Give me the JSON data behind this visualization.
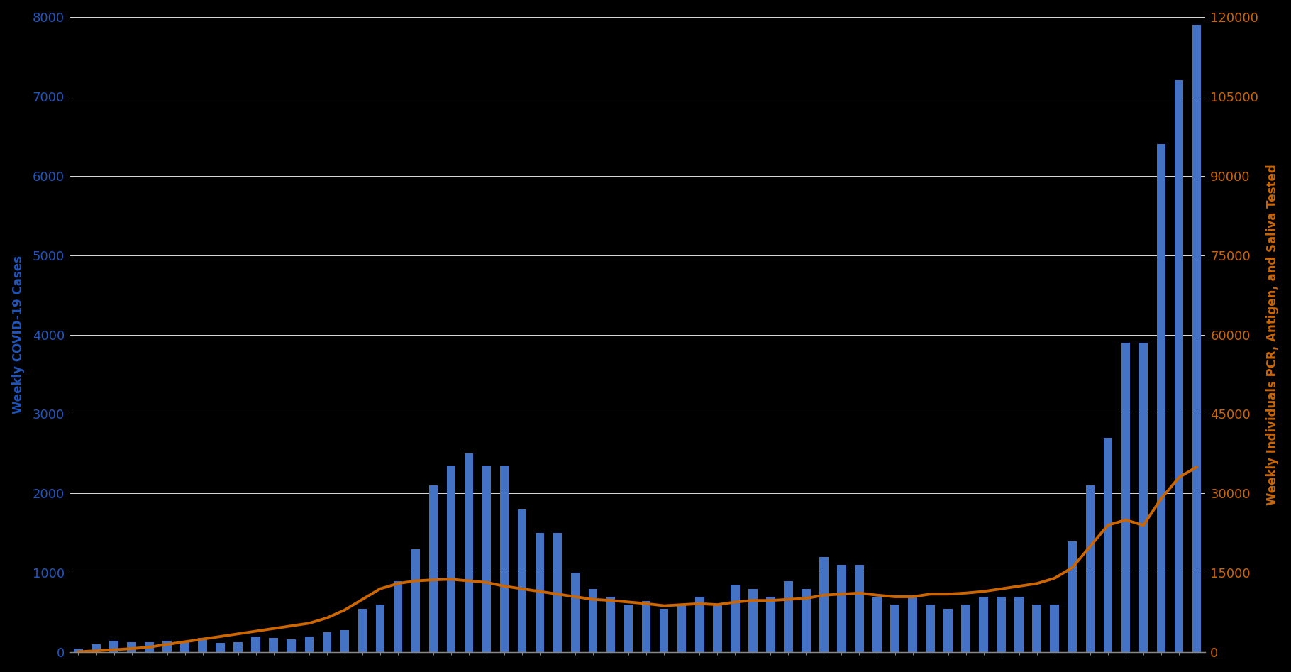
{
  "background_color": "#000000",
  "bar_color": "#4472c4",
  "line_color": "#cc6600",
  "left_ylabel": "Weekly COVID-19 Cases",
  "right_ylabel": "Weekly Individuals PCR, Antigen, and Saliva Tested",
  "left_ylim": [
    0,
    8000
  ],
  "right_ylim": [
    0,
    120000
  ],
  "left_yticks": [
    0,
    1000,
    2000,
    3000,
    4000,
    5000,
    6000,
    7000,
    8000
  ],
  "right_yticks": [
    0,
    15000,
    30000,
    45000,
    60000,
    75000,
    90000,
    105000,
    120000
  ],
  "grid_color": "#ffffff",
  "axis_color": "#888888",
  "left_label_color": "#2255bb",
  "right_label_color": "#cc6600",
  "tick_label_fontsize": 13,
  "ylabel_fontsize": 12,
  "bar_values": [
    50,
    100,
    150,
    130,
    130,
    150,
    150,
    180,
    120,
    130,
    200,
    180,
    160,
    200,
    250,
    280,
    550,
    600,
    900,
    1300,
    2100,
    2350,
    2500,
    2350,
    2350,
    1800,
    1500,
    1500,
    1000,
    800,
    700,
    600,
    650,
    550,
    600,
    700,
    600,
    850,
    800,
    700,
    900,
    800,
    1200,
    1100,
    1100,
    700,
    600,
    700,
    600,
    550,
    600,
    700,
    700,
    700,
    600,
    600,
    1400,
    2100,
    2700,
    3900,
    3900,
    6400,
    7200,
    7900
  ],
  "line_values": [
    100,
    300,
    500,
    700,
    1000,
    1500,
    2000,
    2500,
    3000,
    3500,
    4000,
    4500,
    5000,
    5500,
    6500,
    8000,
    10000,
    12000,
    13000,
    13500,
    13700,
    13800,
    13500,
    13200,
    12500,
    12000,
    11500,
    11000,
    10500,
    10000,
    9800,
    9500,
    9200,
    8800,
    9000,
    9200,
    9000,
    9500,
    9800,
    9800,
    10000,
    10200,
    10800,
    11000,
    11200,
    10800,
    10500,
    10500,
    11000,
    11000,
    11200,
    11500,
    12000,
    12500,
    13000,
    14000,
    16000,
    20000,
    24000,
    25000,
    24000,
    29000,
    33000,
    35000
  ]
}
